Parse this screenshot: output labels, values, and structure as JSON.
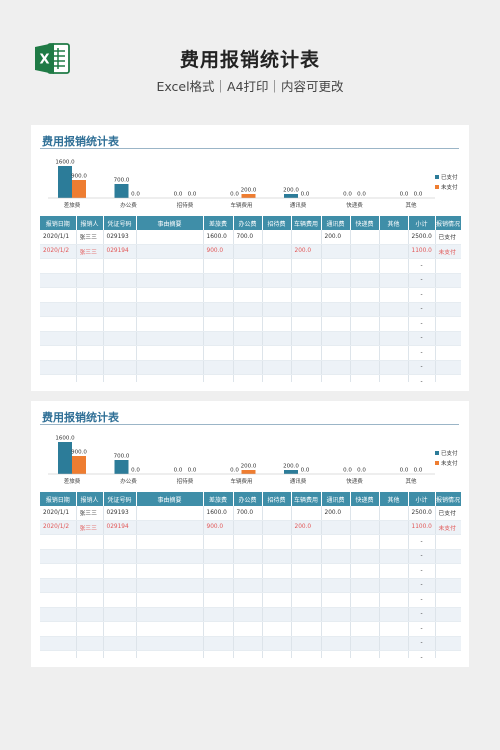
{
  "header": {
    "title": "费用报销统计表",
    "subtitle": "Excel格式｜A4打印｜内容可更改",
    "logo_letter": "X"
  },
  "sheet": {
    "title": "费用报销统计表",
    "columns": [
      "报销日期",
      "报销人",
      "凭证号码",
      "事由摘要",
      "差旅费",
      "办公费",
      "招待费",
      "车辆费用",
      "通讯费",
      "快递费",
      "其他",
      "小计",
      "报销情况"
    ],
    "rows": [
      {
        "date": "2020/1/1",
        "person": "张三三",
        "voucher": "029193",
        "summary": "",
        "travel": "1600.0",
        "office": "700.0",
        "hosp": "",
        "vehicle": "",
        "comm": "200.0",
        "express": "",
        "other": "",
        "subtotal": "2500.0",
        "status": "已支付"
      },
      {
        "date": "2020/1/2",
        "person": "张三三",
        "voucher": "029194",
        "summary": "",
        "travel": "900.0",
        "office": "",
        "hosp": "",
        "vehicle": "200.0",
        "comm": "",
        "express": "",
        "other": "",
        "subtotal": "1100.0",
        "status": "未支付"
      }
    ],
    "empty_row_subtotal": "-"
  },
  "chart_data": {
    "type": "bar",
    "categories": [
      "差旅费",
      "办公费",
      "招待费",
      "车辆费用",
      "通讯费",
      "快递费",
      "其他"
    ],
    "series": [
      {
        "name": "已支付",
        "values": [
          1600,
          700,
          0,
          0,
          200,
          0,
          0
        ],
        "labels": [
          "1600.0",
          "700.0",
          "0.0",
          "0.0",
          "200.0",
          "0.0",
          "0.0"
        ]
      },
      {
        "name": "未支付",
        "values": [
          900,
          0,
          0,
          200,
          0,
          0,
          0
        ],
        "labels": [
          "900.0",
          "0.0",
          "0.0",
          "200.0",
          "0.0",
          "0.0",
          "0.0"
        ]
      }
    ],
    "ylim": [
      0,
      1600
    ],
    "legend": "right",
    "colors": [
      "#2c7c99",
      "#ee7d31"
    ]
  }
}
